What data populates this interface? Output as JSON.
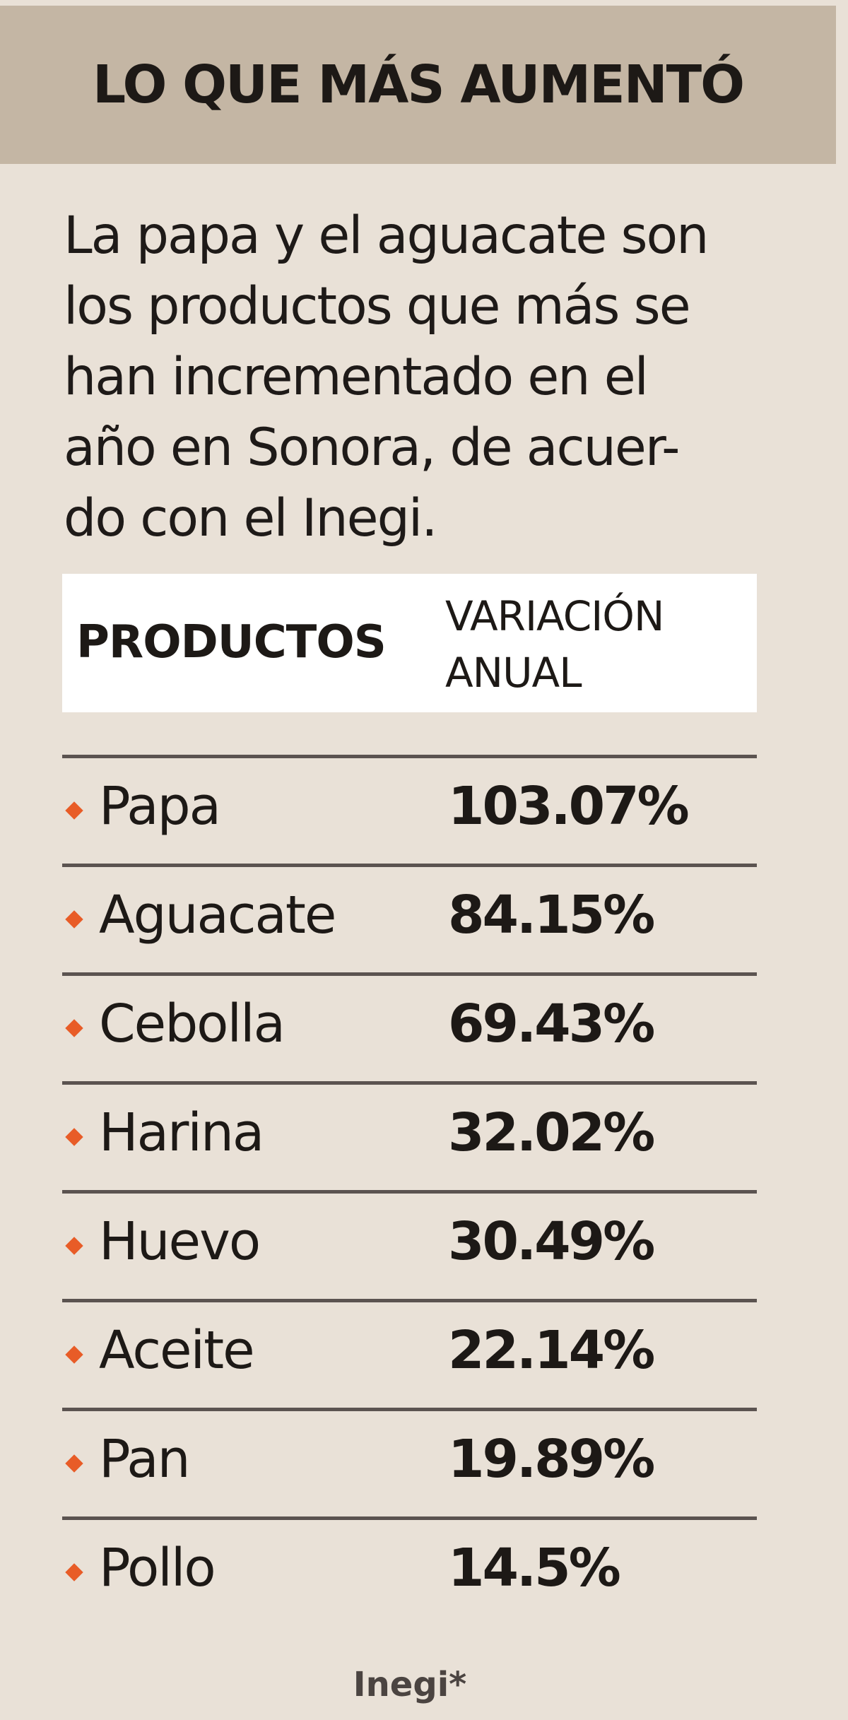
{
  "header": {
    "title": "LO QUE MÁS AUMENTÓ"
  },
  "intro": "La papa y el aguacate son\nlos productos que más se\nhan incrementado en el\naño en Sonora, de acuer-\ndo con el Inegi.",
  "table_header": {
    "products": "PRODUCTOS",
    "variation": "VARIACIÓN\nANUAL"
  },
  "source": "Inegi*",
  "colors": {
    "background": "#e9e1d7",
    "header_band": "#c4b6a4",
    "bullet": "#e85c27",
    "rule": "#5b5350"
  },
  "chart_data": {
    "type": "table",
    "title": "LO QUE MÁS AUMENTÓ",
    "columns": [
      "PRODUCTOS",
      "VARIACIÓN ANUAL"
    ],
    "rows": [
      {
        "product": "Papa",
        "value": "103.07%"
      },
      {
        "product": "Aguacate",
        "value": "84.15%"
      },
      {
        "product": "Cebolla",
        "value": "69.43%"
      },
      {
        "product": "Harina",
        "value": "32.02%"
      },
      {
        "product": "Huevo",
        "value": "30.49%"
      },
      {
        "product": "Aceite",
        "value": "22.14%"
      },
      {
        "product": "Pan",
        "value": "19.89%"
      },
      {
        "product": "Pollo",
        "value": "14.5%"
      }
    ]
  }
}
